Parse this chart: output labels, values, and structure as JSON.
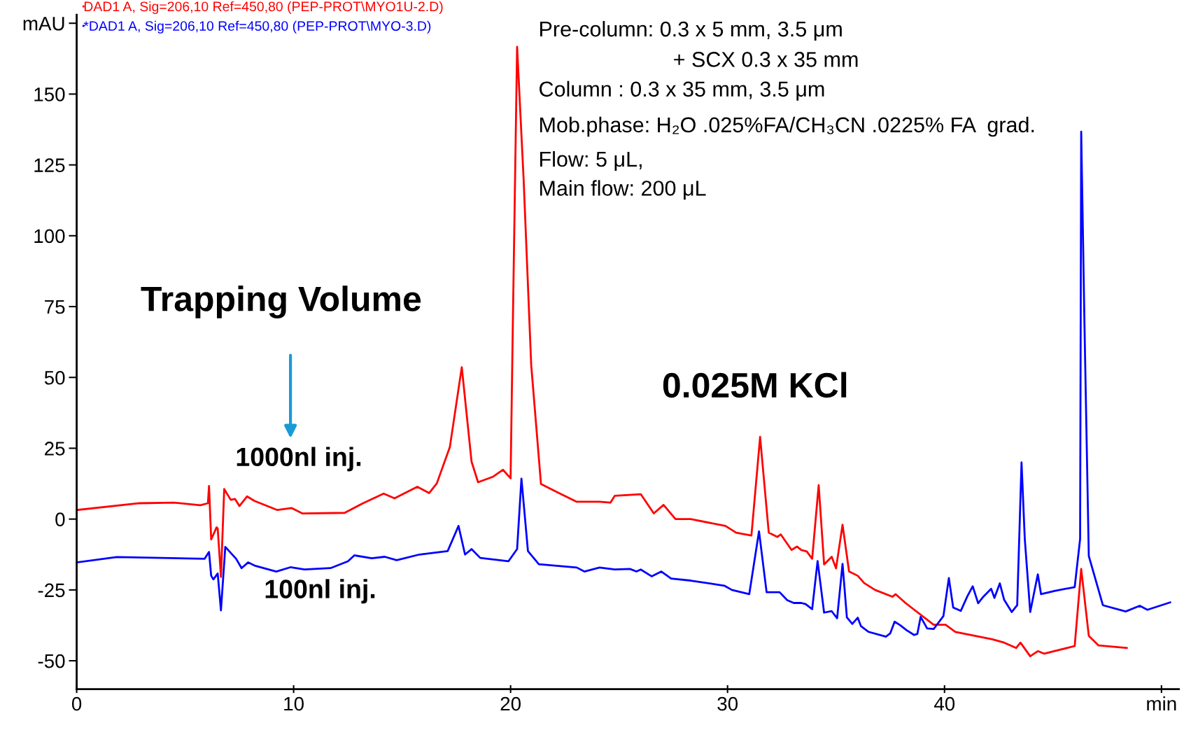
{
  "chart_data": {
    "type": "line",
    "xlim": [
      0,
      50.8
    ],
    "ylim": [
      -60,
      178
    ],
    "xticks": [
      0,
      10,
      20,
      30,
      40,
      {
        "value": 50,
        "label": "min"
      }
    ],
    "yticks": [
      -50,
      -25,
      0,
      25,
      50,
      75,
      100,
      125,
      150,
      {
        "value": 175,
        "label": "mAU"
      }
    ],
    "legend": "top left",
    "grid": false,
    "marker": "none",
    "line_style": "solid",
    "annotations": [
      "Trapping Volume",
      "1000nl inj.",
      "100nl inj.",
      "0.025M KCl",
      "Pre-column: 0.3 x 5 mm, 3.5 μm",
      "+ SCX 0.3 x 35 mm",
      "Column : 0.3 x 35 mm, 3.5 μm",
      "Mob.phase: H₂O .025%FA/CH₃CN .0225% FA  grad.",
      "Flow: 5 μL,",
      "Main flow: 200 μL"
    ],
    "series": [
      {
        "name": "DAD1 A, Sig=206,10 Ref=450,80 (PEP-PROT\\MYO1U-2.D)",
        "color": "#ff0000",
        "x": [
          0,
          2.9,
          4.5,
          5.7,
          6.05,
          6.1,
          6.2,
          6.45,
          6.5,
          6.65,
          6.8,
          7.1,
          7.3,
          7.5,
          7.85,
          8.2,
          9.25,
          9.9,
          10.4,
          12.35,
          13.2,
          14.15,
          14.65,
          15.7,
          16.25,
          16.6,
          17.2,
          17.75,
          18.2,
          18.5,
          19.2,
          19.65,
          20.0,
          20.1,
          20.3,
          20.6,
          20.95,
          21.4,
          22.1,
          23.05,
          24.1,
          24.6,
          24.8,
          26.0,
          26.6,
          27.05,
          27.6,
          28.3,
          29.9,
          30.4,
          31.1,
          31.5,
          31.9,
          32.3,
          32.45,
          32.95,
          33.2,
          33.4,
          33.65,
          33.9,
          34.2,
          34.45,
          34.8,
          35.0,
          35.3,
          35.6,
          36.0,
          36.3,
          36.8,
          37.6,
          37.75,
          38.2,
          39.5,
          40.05,
          40.5,
          42.2,
          42.75,
          43.3,
          43.5,
          43.95,
          44.3,
          44.6,
          46.0,
          46.3,
          46.65,
          47.1,
          48.4
        ],
        "values": [
          3.2,
          5.6,
          5.8,
          4.9,
          5.6,
          11.7,
          -7.2,
          -2.9,
          -3.3,
          -20.4,
          10.6,
          6.8,
          7.1,
          4.6,
          8,
          6.4,
          3.2,
          3.9,
          2,
          2.2,
          5.6,
          9,
          7.3,
          11.4,
          9.2,
          12.6,
          25.4,
          53.6,
          20.3,
          13,
          15,
          17.4,
          14.4,
          67,
          166.7,
          120,
          54.4,
          12.4,
          9.7,
          6.1,
          6.1,
          5.8,
          8.2,
          8.8,
          2,
          5,
          0,
          0,
          -2.4,
          -4.8,
          -5.8,
          29,
          -4.8,
          -6.3,
          -5.4,
          -10.9,
          -9.7,
          -10.9,
          -11.4,
          -14,
          12,
          -16,
          -13.3,
          -17.4,
          -2,
          -18.5,
          -20,
          -22.6,
          -25,
          -27.4,
          -26.5,
          -29.6,
          -37.3,
          -37.3,
          -39.8,
          -42.4,
          -43.6,
          -45.5,
          -43.6,
          -48.4,
          -46.6,
          -47.5,
          -44.8,
          -17.6,
          -41.2,
          -44.6,
          -45.5
        ]
      },
      {
        "name": "*DAD1 A, Sig=206,10 Ref=450,80 (PEP-PROT\\MYO-3.D)",
        "color": "#0000ff",
        "x": [
          0,
          1.85,
          5.9,
          6.1,
          6.2,
          6.3,
          6.5,
          6.65,
          6.85,
          7.35,
          7.6,
          7.9,
          8.2,
          9.2,
          9.85,
          10.5,
          11.7,
          12.5,
          12.8,
          13.6,
          14.2,
          14.75,
          15.8,
          17.1,
          17.6,
          17.9,
          18.2,
          18.6,
          19.9,
          20.3,
          20.5,
          20.8,
          21.3,
          23.05,
          23.4,
          24.1,
          24.8,
          25.5,
          25.8,
          26.0,
          26.5,
          26.95,
          27.4,
          28.3,
          29.85,
          30.2,
          31.0,
          31.45,
          31.8,
          32.4,
          32.75,
          33.05,
          33.4,
          33.6,
          33.9,
          34.15,
          34.45,
          34.8,
          35.05,
          35.3,
          35.5,
          35.75,
          36.0,
          36.15,
          36.5,
          37.3,
          37.5,
          37.7,
          37.95,
          38.25,
          38.6,
          38.75,
          38.9,
          39.2,
          39.5,
          39.95,
          40.2,
          40.4,
          40.75,
          41.05,
          41.3,
          41.55,
          41.8,
          42.15,
          42.3,
          42.55,
          42.75,
          43.1,
          43.35,
          43.55,
          43.7,
          43.95,
          44.3,
          44.45,
          45.1,
          46.0,
          46.25,
          46.3,
          46.45,
          46.65,
          47.3,
          48.35,
          49.0,
          49.35,
          50.4
        ],
        "values": [
          -15.3,
          -13.4,
          -14,
          -11.6,
          -20,
          -21.3,
          -19.2,
          -32.2,
          -9.8,
          -14,
          -17.3,
          -15.3,
          -16.4,
          -18.5,
          -17,
          -17.8,
          -17.3,
          -14.9,
          -12.8,
          -13.8,
          -13.3,
          -14.5,
          -12.5,
          -11.3,
          -2.4,
          -12.5,
          -10.6,
          -13.7,
          -14.9,
          -10.6,
          14.3,
          -11.3,
          -15.9,
          -17.1,
          -18.5,
          -17.1,
          -17.8,
          -17.6,
          -18.5,
          -17.8,
          -20.2,
          -18.5,
          -21,
          -21.7,
          -23.5,
          -25,
          -26.5,
          -4.3,
          -25.8,
          -25.8,
          -28.6,
          -29.6,
          -29.6,
          -30,
          -31.8,
          -14.8,
          -33,
          -32.5,
          -35,
          -15.8,
          -34.7,
          -37,
          -34.8,
          -37.8,
          -39.8,
          -41.5,
          -40.3,
          -36.2,
          -37.4,
          -39.2,
          -40.9,
          -40.5,
          -34.5,
          -38.6,
          -38.8,
          -34.2,
          -20.8,
          -31.2,
          -32.4,
          -27.3,
          -23.7,
          -29.7,
          -27.3,
          -24.6,
          -27.8,
          -22.7,
          -28.5,
          -32.8,
          -30.4,
          20,
          -7,
          -32.8,
          -19.5,
          -26.5,
          -25.3,
          -24,
          -7,
          136.7,
          69,
          -13,
          -30.4,
          -32.6,
          -30.6,
          -32,
          -29.4
        ]
      }
    ]
  }
}
